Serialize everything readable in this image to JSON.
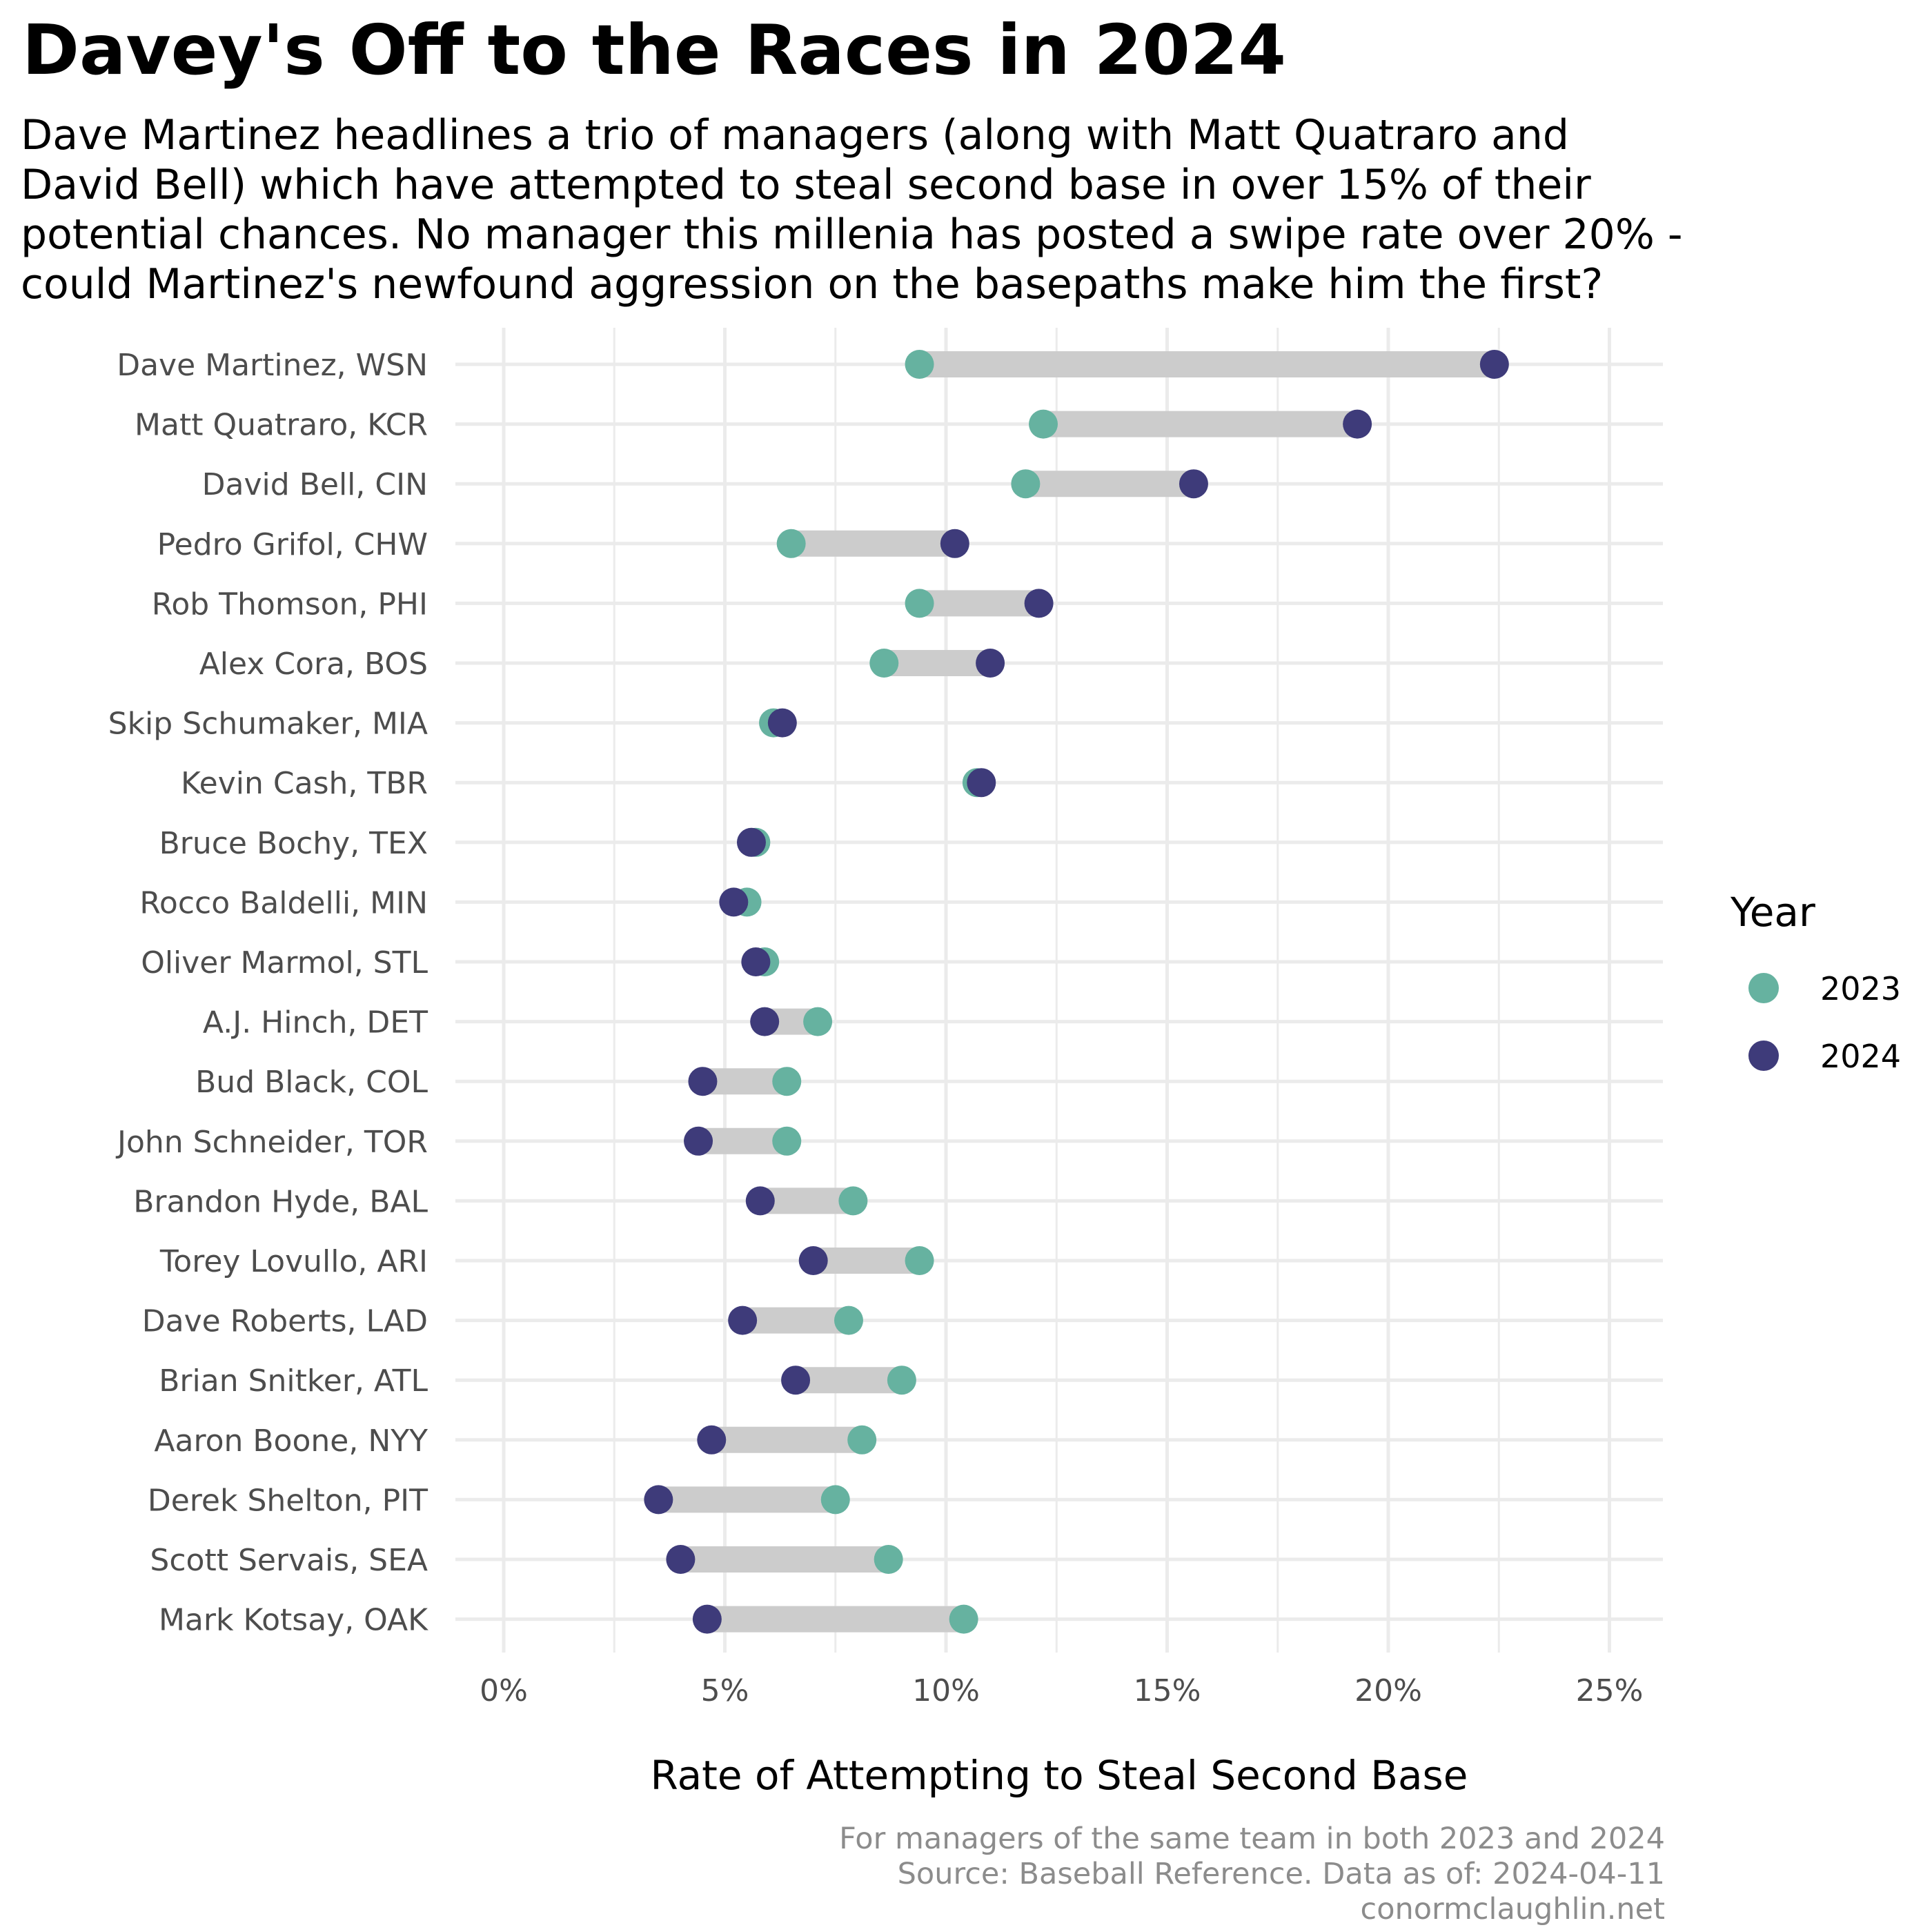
{
  "title": "Davey's Off to the Races in 2024",
  "subtitle": "Dave Martinez headlines a trio of managers (along with Matt Quatraro and\nDavid Bell) which have attempted to steal second base in over 15% of their\npotential chances. No manager this millenia has posted a swipe rate over 20% -\ncould Martinez's newfound aggression on the basepaths make him the first?",
  "caption": "For managers of the same team in both 2023 and 2024\nSource: Baseball Reference. Data as of: 2024-04-11\nconormclaughlin.net",
  "colors": {
    "y2023": "#66b2a0",
    "y2024": "#3e3b7a",
    "segment": "#cccccc",
    "grid": "#ebebeb",
    "axis_text": "#4d4d4d"
  },
  "chart_data": {
    "type": "dumbbell",
    "title": "Davey's Off to the Races in 2024",
    "xlabel": "Rate of Attempting to Steal Second Base",
    "ylabel": "",
    "xlim": [
      0,
      25
    ],
    "x_ticks": [
      0,
      5,
      10,
      15,
      20,
      25
    ],
    "x_tick_labels": [
      "0%",
      "5%",
      "10%",
      "15%",
      "20%",
      "25%"
    ],
    "legend": {
      "title": "Year",
      "position": "right",
      "entries": [
        "2023",
        "2024"
      ]
    },
    "grid": true,
    "categories": [
      "Dave Martinez, WSN",
      "Matt Quatraro, KCR",
      "David Bell, CIN",
      "Pedro Grifol, CHW",
      "Rob Thomson, PHI",
      "Alex Cora, BOS",
      "Skip Schumaker, MIA",
      "Kevin Cash, TBR",
      "Bruce Bochy, TEX",
      "Rocco Baldelli, MIN",
      "Oliver Marmol, STL",
      "A.J. Hinch, DET",
      "Bud Black, COL",
      "John Schneider, TOR",
      "Brandon Hyde, BAL",
      "Torey Lovullo, ARI",
      "Dave Roberts, LAD",
      "Brian Snitker, ATL",
      "Aaron Boone, NYY",
      "Derek Shelton, PIT",
      "Scott Servais, SEA",
      "Mark Kotsay, OAK"
    ],
    "series": [
      {
        "name": "2023",
        "values": [
          9.4,
          12.2,
          11.8,
          6.5,
          9.4,
          8.6,
          6.1,
          10.7,
          5.7,
          5.5,
          5.9,
          7.1,
          6.4,
          6.4,
          7.9,
          9.4,
          7.8,
          9.0,
          8.1,
          7.5,
          8.7,
          10.4
        ]
      },
      {
        "name": "2024",
        "values": [
          22.4,
          19.3,
          15.6,
          10.2,
          12.1,
          11.0,
          6.3,
          10.8,
          5.6,
          5.2,
          5.7,
          5.9,
          4.5,
          4.4,
          5.8,
          7.0,
          5.4,
          6.6,
          4.7,
          3.5,
          4.0,
          4.6
        ]
      }
    ]
  }
}
